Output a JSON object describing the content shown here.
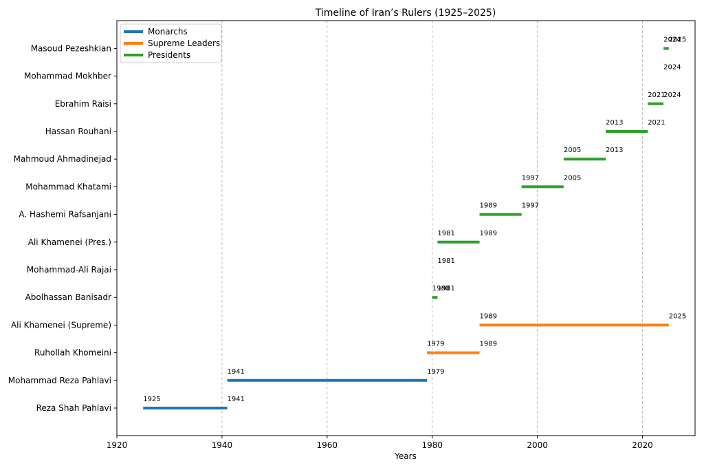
{
  "chart_data": {
    "type": "timeline",
    "title": "Timeline of Iran’s Rulers (1925–2025)",
    "xlabel": "Years",
    "ylabel": "",
    "xlim": [
      1920,
      2030
    ],
    "x_ticks": [
      "1920",
      "1940",
      "1960",
      "1980",
      "2000",
      "2020"
    ],
    "grid": "vertical-dashed",
    "legend_position": "top-left",
    "series": [
      {
        "name": "Monarchs",
        "color": "#1f77b4"
      },
      {
        "name": "Supreme Leaders",
        "color": "#ff7f0e"
      },
      {
        "name": "Presidents",
        "color": "#2ca02c"
      }
    ],
    "rulers": [
      {
        "name": "Reza Shah Pahlavi",
        "group": "Monarchs",
        "start": 1925,
        "end": 1941,
        "start_label": "1925",
        "end_label": "1941"
      },
      {
        "name": "Mohammad Reza Pahlavi",
        "group": "Monarchs",
        "start": 1941,
        "end": 1979,
        "start_label": "1941",
        "end_label": "1979"
      },
      {
        "name": "Ruhollah Khomeini",
        "group": "Supreme Leaders",
        "start": 1979,
        "end": 1989,
        "start_label": "1979",
        "end_label": "1989"
      },
      {
        "name": "Ali Khamenei (Supreme)",
        "group": "Supreme Leaders",
        "start": 1989,
        "end": 2025,
        "start_label": "1989",
        "end_label": "2025"
      },
      {
        "name": "Abolhassan Banisadr",
        "group": "Presidents",
        "start": 1980,
        "end": 1981,
        "start_label": "1980",
        "end_label": "1981"
      },
      {
        "name": "Mohammad-Ali Rajai",
        "group": "Presidents",
        "start": 1981,
        "end": 1981,
        "start_label": "1981",
        "end_label": ""
      },
      {
        "name": "Ali Khamenei (Pres.)",
        "group": "Presidents",
        "start": 1981,
        "end": 1989,
        "start_label": "1981",
        "end_label": "1989"
      },
      {
        "name": "A. Hashemi Rafsanjani",
        "group": "Presidents",
        "start": 1989,
        "end": 1997,
        "start_label": "1989",
        "end_label": "1997"
      },
      {
        "name": "Mohammad Khatami",
        "group": "Presidents",
        "start": 1997,
        "end": 2005,
        "start_label": "1997",
        "end_label": "2005"
      },
      {
        "name": "Mahmoud Ahmadinejad",
        "group": "Presidents",
        "start": 2005,
        "end": 2013,
        "start_label": "2005",
        "end_label": "2013"
      },
      {
        "name": "Hassan Rouhani",
        "group": "Presidents",
        "start": 2013,
        "end": 2021,
        "start_label": "2013",
        "end_label": "2021"
      },
      {
        "name": "Ebrahim Raisi",
        "group": "Presidents",
        "start": 2021,
        "end": 2024,
        "start_label": "2021",
        "end_label": "2024"
      },
      {
        "name": "Mohammad Mokhber",
        "group": "Presidents",
        "start": 2024,
        "end": 2024,
        "start_label": "2024",
        "end_label": ""
      },
      {
        "name": "Masoud Pezeshkian",
        "group": "Presidents",
        "start": 2024,
        "end": 2025,
        "start_label": "2024",
        "end_label": "2025"
      }
    ]
  }
}
